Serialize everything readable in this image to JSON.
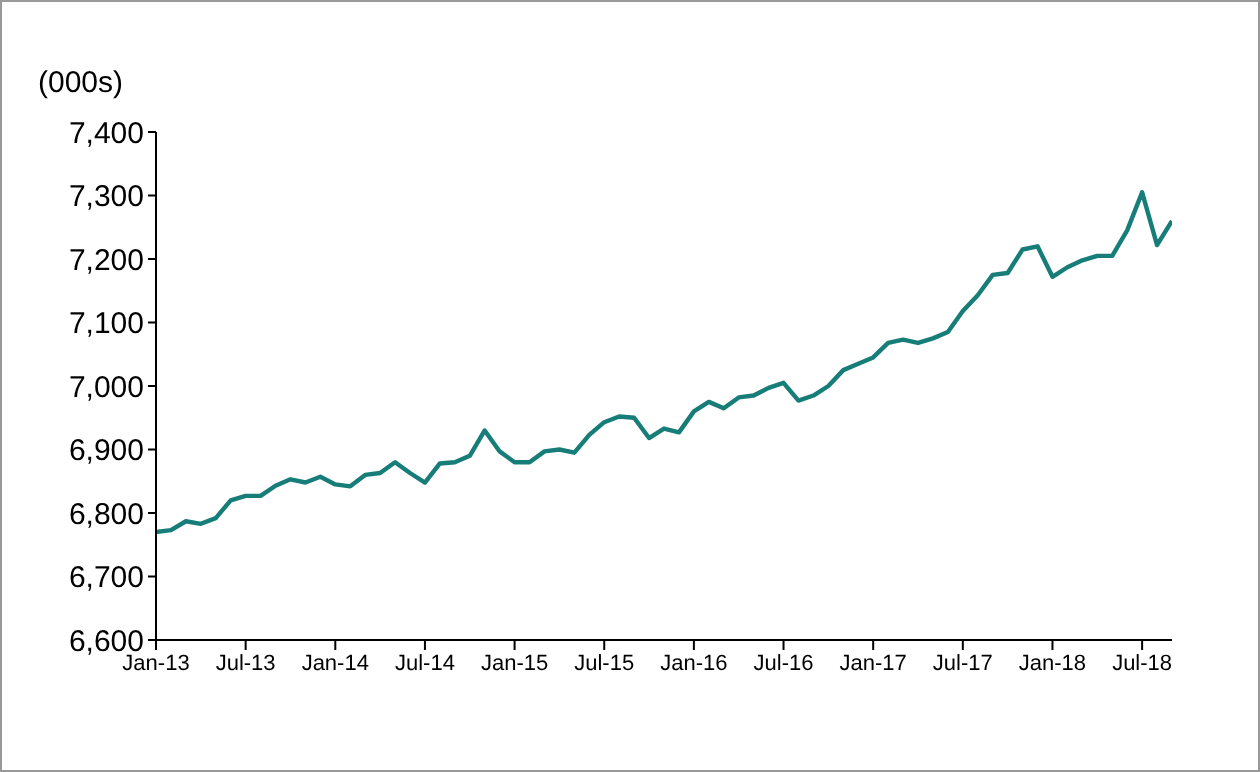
{
  "chart_data": {
    "type": "line",
    "ylabel": "(000s)",
    "categories": [
      "Jan-13",
      null,
      null,
      null,
      null,
      null,
      "Jul-13",
      null,
      null,
      null,
      null,
      null,
      "Jan-14",
      null,
      null,
      null,
      null,
      null,
      "Jul-14",
      null,
      null,
      null,
      null,
      null,
      "Jan-15",
      null,
      null,
      null,
      null,
      null,
      "Jul-15",
      null,
      null,
      null,
      null,
      null,
      "Jan-16",
      null,
      null,
      null,
      null,
      null,
      "Jul-16",
      null,
      null,
      null,
      null,
      null,
      "Jan-17",
      null,
      null,
      null,
      null,
      null,
      "Jul-17",
      null,
      null,
      null,
      null,
      null,
      "Jan-18",
      null,
      null,
      null,
      null,
      null,
      "Jul-18",
      null,
      null
    ],
    "series": [
      {
        "color": "#177d79",
        "values": [
          6770,
          6773,
          6787,
          6783,
          6792,
          6820,
          6827,
          6827,
          6843,
          6853,
          6848,
          6857,
          6845,
          6842,
          6860,
          6863,
          6880,
          6863,
          6848,
          6878,
          6880,
          6890,
          6930,
          6897,
          6880,
          6880,
          6897,
          6900,
          6895,
          6923,
          6943,
          6952,
          6950,
          6918,
          6933,
          6927,
          6960,
          6975,
          6965,
          6982,
          6985,
          6997,
          7005,
          6977,
          6985,
          7000,
          7025,
          7035,
          7045,
          7068,
          7073,
          7068,
          7075,
          7085,
          7118,
          7143,
          7175,
          7178,
          7215,
          7220,
          7172,
          7187,
          7198,
          7205,
          7205,
          7245,
          7305,
          7222,
          7260
        ]
      }
    ],
    "ylim": [
      6600,
      7400
    ],
    "yticks": [
      {
        "value": 6600,
        "label": "6,600"
      },
      {
        "value": 6700,
        "label": "6,700"
      },
      {
        "value": 6800,
        "label": "6,800"
      },
      {
        "value": 6900,
        "label": "6,900"
      },
      {
        "value": 7000,
        "label": "7,000"
      },
      {
        "value": 7100,
        "label": "7,100"
      },
      {
        "value": 7200,
        "label": "7,200"
      },
      {
        "value": 7300,
        "label": "7,300"
      },
      {
        "value": 7400,
        "label": "7,400"
      }
    ],
    "grid": false,
    "legend": false,
    "marker": "none",
    "line_style": "solid"
  }
}
